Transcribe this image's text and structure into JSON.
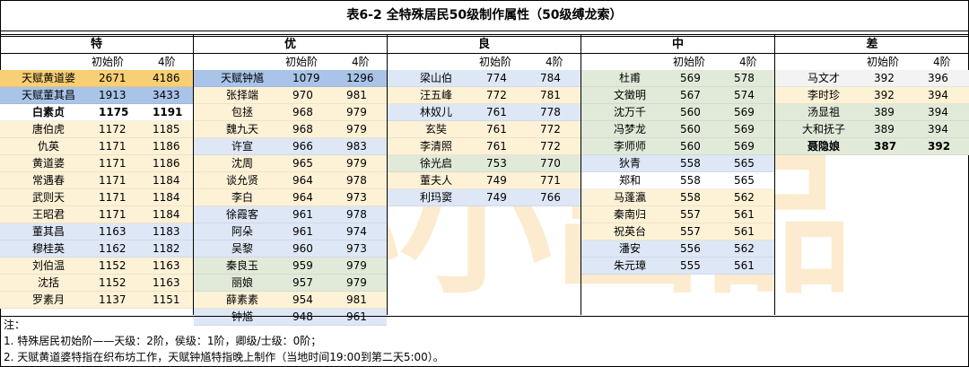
{
  "title": "表6-2 全特殊居民50级制作属性（50级缚龙索）",
  "watermark": "小小小出品",
  "col_initial": "初始阶",
  "col_4": "4阶",
  "groups": [
    {
      "name": "特",
      "rows": [
        {
          "name": "天赋黄道婆",
          "a": "2671",
          "b": "4186",
          "bg": "orange",
          "bold": false
        },
        {
          "name": "天赋董其昌",
          "a": "1913",
          "b": "3433",
          "bg": "blue",
          "bold": false
        },
        {
          "name": "白素贞",
          "a": "1175",
          "b": "1191",
          "bg": "white",
          "bold": true
        },
        {
          "name": "唐伯虎",
          "a": "1172",
          "b": "1185",
          "bg": "cream",
          "bold": false
        },
        {
          "name": "仇英",
          "a": "1171",
          "b": "1186",
          "bg": "cream",
          "bold": false
        },
        {
          "name": "黄道婆",
          "a": "1171",
          "b": "1186",
          "bg": "cream",
          "bold": false
        },
        {
          "name": "常遇春",
          "a": "1171",
          "b": "1184",
          "bg": "cream",
          "bold": false
        },
        {
          "name": "武则天",
          "a": "1171",
          "b": "1184",
          "bg": "cream",
          "bold": false
        },
        {
          "name": "王昭君",
          "a": "1171",
          "b": "1184",
          "bg": "cream",
          "bold": false
        },
        {
          "name": "董其昌",
          "a": "1163",
          "b": "1183",
          "bg": "lblue",
          "bold": false
        },
        {
          "name": "穆桂英",
          "a": "1162",
          "b": "1182",
          "bg": "lblue",
          "bold": false
        },
        {
          "name": "刘伯温",
          "a": "1152",
          "b": "1163",
          "bg": "cream",
          "bold": false
        },
        {
          "name": "沈括",
          "a": "1152",
          "b": "1163",
          "bg": "cream",
          "bold": false
        },
        {
          "name": "罗素月",
          "a": "1137",
          "b": "1151",
          "bg": "cream",
          "bold": false
        }
      ]
    },
    {
      "name": "优",
      "rows": [
        {
          "name": "天赋钟馗",
          "a": "1079",
          "b": "1296",
          "bg": "blue",
          "bold": false
        },
        {
          "name": "张择端",
          "a": "970",
          "b": "981",
          "bg": "cream",
          "bold": false
        },
        {
          "name": "包拯",
          "a": "968",
          "b": "979",
          "bg": "cream",
          "bold": false
        },
        {
          "name": "魏九天",
          "a": "968",
          "b": "979",
          "bg": "cream",
          "bold": false
        },
        {
          "name": "许宣",
          "a": "966",
          "b": "983",
          "bg": "lblue",
          "bold": false
        },
        {
          "name": "沈周",
          "a": "965",
          "b": "979",
          "bg": "cream",
          "bold": false
        },
        {
          "name": "谈允贤",
          "a": "964",
          "b": "978",
          "bg": "cream",
          "bold": false
        },
        {
          "name": "李白",
          "a": "964",
          "b": "973",
          "bg": "cream",
          "bold": false
        },
        {
          "name": "徐霞客",
          "a": "961",
          "b": "978",
          "bg": "lblue",
          "bold": false
        },
        {
          "name": "阿朵",
          "a": "961",
          "b": "974",
          "bg": "lblue",
          "bold": false
        },
        {
          "name": "吴黎",
          "a": "960",
          "b": "973",
          "bg": "lblue",
          "bold": false
        },
        {
          "name": "秦良玉",
          "a": "959",
          "b": "979",
          "bg": "green",
          "bold": false
        },
        {
          "name": "丽娘",
          "a": "957",
          "b": "979",
          "bg": "green",
          "bold": false
        },
        {
          "name": "薛素素",
          "a": "954",
          "b": "981",
          "bg": "cream",
          "bold": false
        },
        {
          "name": "钟馗",
          "a": "948",
          "b": "961",
          "bg": "lblue",
          "bold": false
        }
      ]
    },
    {
      "name": "良",
      "rows": [
        {
          "name": "梁山伯",
          "a": "774",
          "b": "784",
          "bg": "lblue",
          "bold": false
        },
        {
          "name": "汪五峰",
          "a": "772",
          "b": "781",
          "bg": "cream",
          "bold": false
        },
        {
          "name": "林奴儿",
          "a": "761",
          "b": "778",
          "bg": "lblue",
          "bold": false
        },
        {
          "name": "玄奘",
          "a": "761",
          "b": "772",
          "bg": "cream",
          "bold": false
        },
        {
          "name": "李清照",
          "a": "761",
          "b": "772",
          "bg": "cream",
          "bold": false
        },
        {
          "name": "徐光启",
          "a": "753",
          "b": "770",
          "bg": "green",
          "bold": false
        },
        {
          "name": "董夫人",
          "a": "749",
          "b": "771",
          "bg": "cream",
          "bold": false
        },
        {
          "name": "利玛窦",
          "a": "749",
          "b": "766",
          "bg": "lblue",
          "bold": false
        }
      ]
    },
    {
      "name": "中",
      "rows": [
        {
          "name": "杜甫",
          "a": "569",
          "b": "578",
          "bg": "green",
          "bold": false
        },
        {
          "name": "文徵明",
          "a": "567",
          "b": "574",
          "bg": "green",
          "bold": false
        },
        {
          "name": "沈万千",
          "a": "560",
          "b": "569",
          "bg": "green",
          "bold": false
        },
        {
          "name": "冯梦龙",
          "a": "560",
          "b": "569",
          "bg": "green",
          "bold": false
        },
        {
          "name": "李师师",
          "a": "560",
          "b": "569",
          "bg": "green",
          "bold": false
        },
        {
          "name": "狄青",
          "a": "558",
          "b": "565",
          "bg": "lblue",
          "bold": false
        },
        {
          "name": "郑和",
          "a": "558",
          "b": "565",
          "bg": "white",
          "bold": false
        },
        {
          "name": "马蓬瀛",
          "a": "558",
          "b": "562",
          "bg": "cream",
          "bold": false
        },
        {
          "name": "秦南归",
          "a": "557",
          "b": "561",
          "bg": "cream",
          "bold": false
        },
        {
          "name": "祝英台",
          "a": "557",
          "b": "561",
          "bg": "cream",
          "bold": false
        },
        {
          "name": "潘安",
          "a": "556",
          "b": "562",
          "bg": "lblue",
          "bold": false
        },
        {
          "name": "朱元璋",
          "a": "555",
          "b": "561",
          "bg": "lblue",
          "bold": false
        }
      ]
    },
    {
      "name": "差",
      "rows": [
        {
          "name": "马文才",
          "a": "392",
          "b": "396",
          "bg": "gray",
          "bold": false
        },
        {
          "name": "李时珍",
          "a": "392",
          "b": "394",
          "bg": "cream",
          "bold": false
        },
        {
          "name": "汤显祖",
          "a": "389",
          "b": "394",
          "bg": "green",
          "bold": false
        },
        {
          "name": "大和抚子",
          "a": "389",
          "b": "394",
          "bg": "green",
          "bold": false
        },
        {
          "name": "聂隐娘",
          "a": "387",
          "b": "392",
          "bg": "green",
          "bold": true
        }
      ]
    }
  ],
  "notes": [
    "注：",
    "1. 特殊居民初始阶——天级：2阶，侯级：1阶，卿级/士级：0阶；",
    "2. 天赋黄道婆特指在织布坊工作，天赋钟馗特指晚上制作（当地时间19:00到第二天5:00）。"
  ]
}
